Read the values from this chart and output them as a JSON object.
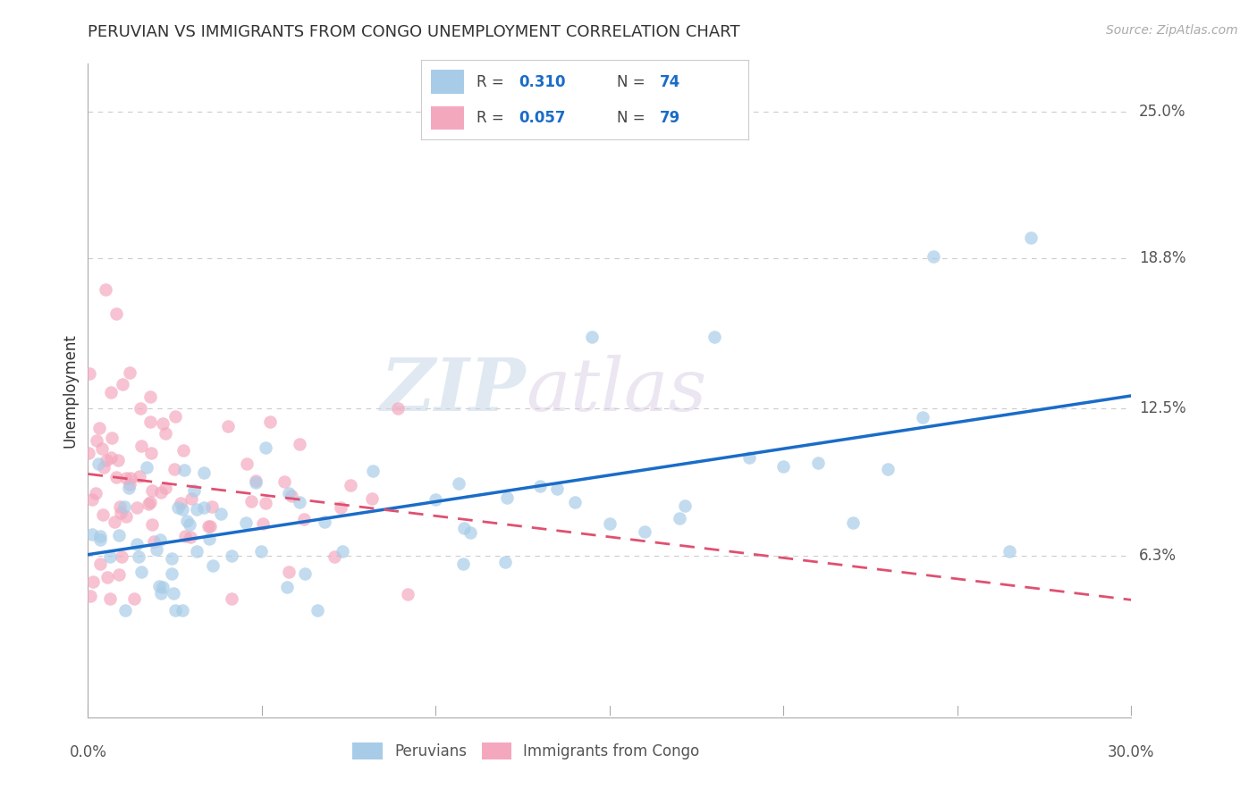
{
  "title": "PERUVIAN VS IMMIGRANTS FROM CONGO UNEMPLOYMENT CORRELATION CHART",
  "source": "Source: ZipAtlas.com",
  "ylabel": "Unemployment",
  "ytick_vals": [
    0.063,
    0.125,
    0.188,
    0.25
  ],
  "ytick_labels": [
    "6.3%",
    "12.5%",
    "18.8%",
    "25.0%"
  ],
  "xmin": 0.0,
  "xmax": 0.3,
  "ymin": -0.005,
  "ymax": 0.27,
  "blue_color": "#a8cce8",
  "pink_color": "#f4a8be",
  "blue_line_color": "#1a6cc8",
  "pink_line_color": "#e05070",
  "watermark_zip": "ZIP",
  "watermark_atlas": "atlas",
  "legend_label_blue": "Peruvians",
  "legend_label_pink": "Immigrants from Congo",
  "blue_x": [
    0.0,
    0.0,
    0.0,
    0.005,
    0.005,
    0.01,
    0.01,
    0.01,
    0.015,
    0.015,
    0.02,
    0.02,
    0.02,
    0.025,
    0.025,
    0.03,
    0.03,
    0.03,
    0.035,
    0.035,
    0.04,
    0.04,
    0.045,
    0.045,
    0.05,
    0.05,
    0.055,
    0.055,
    0.06,
    0.06,
    0.065,
    0.065,
    0.07,
    0.07,
    0.075,
    0.075,
    0.08,
    0.08,
    0.085,
    0.09,
    0.095,
    0.1,
    0.1,
    0.105,
    0.11,
    0.115,
    0.12,
    0.125,
    0.13,
    0.135,
    0.14,
    0.145,
    0.15,
    0.155,
    0.16,
    0.165,
    0.17,
    0.175,
    0.18,
    0.185,
    0.19,
    0.2,
    0.21,
    0.22,
    0.23,
    0.24,
    0.25,
    0.26,
    0.27,
    0.28,
    0.1,
    0.12,
    0.14,
    0.16
  ],
  "blue_y": [
    0.07,
    0.065,
    0.075,
    0.065,
    0.075,
    0.065,
    0.075,
    0.085,
    0.065,
    0.075,
    0.065,
    0.075,
    0.085,
    0.07,
    0.08,
    0.065,
    0.075,
    0.085,
    0.07,
    0.08,
    0.065,
    0.08,
    0.07,
    0.08,
    0.065,
    0.08,
    0.07,
    0.08,
    0.065,
    0.08,
    0.07,
    0.08,
    0.065,
    0.08,
    0.07,
    0.08,
    0.07,
    0.085,
    0.075,
    0.08,
    0.085,
    0.075,
    0.09,
    0.08,
    0.09,
    0.08,
    0.085,
    0.09,
    0.085,
    0.095,
    0.09,
    0.095,
    0.09,
    0.1,
    0.09,
    0.1,
    0.095,
    0.1,
    0.095,
    0.1,
    0.1,
    0.1,
    0.1,
    0.105,
    0.105,
    0.19,
    0.075,
    0.1,
    0.2,
    0.065,
    0.155,
    0.11,
    0.11,
    0.11
  ],
  "pink_x": [
    0.0,
    0.0,
    0.0,
    0.0,
    0.0,
    0.0,
    0.0,
    0.0,
    0.0,
    0.0,
    0.0,
    0.0,
    0.0,
    0.0,
    0.0,
    0.005,
    0.005,
    0.005,
    0.005,
    0.005,
    0.005,
    0.01,
    0.01,
    0.01,
    0.01,
    0.01,
    0.015,
    0.015,
    0.015,
    0.02,
    0.02,
    0.02,
    0.025,
    0.025,
    0.025,
    0.03,
    0.03,
    0.03,
    0.035,
    0.035,
    0.04,
    0.04,
    0.045,
    0.045,
    0.05,
    0.05,
    0.055,
    0.06,
    0.065,
    0.07,
    0.075,
    0.08,
    0.085,
    0.09,
    0.02,
    0.025,
    0.03,
    0.035,
    0.04,
    0.01,
    0.015,
    0.005,
    0.0,
    0.0,
    0.0,
    0.005,
    0.01,
    0.015,
    0.02,
    0.025,
    0.03,
    0.035,
    0.04,
    0.045,
    0.05,
    0.055,
    0.06,
    0.065,
    0.07
  ],
  "pink_y": [
    0.08,
    0.085,
    0.09,
    0.095,
    0.075,
    0.07,
    0.065,
    0.1,
    0.105,
    0.085,
    0.075,
    0.09,
    0.095,
    0.08,
    0.07,
    0.085,
    0.09,
    0.095,
    0.075,
    0.08,
    0.1,
    0.085,
    0.09,
    0.075,
    0.1,
    0.08,
    0.09,
    0.08,
    0.095,
    0.085,
    0.08,
    0.095,
    0.085,
    0.09,
    0.08,
    0.085,
    0.09,
    0.08,
    0.085,
    0.09,
    0.085,
    0.09,
    0.085,
    0.09,
    0.085,
    0.09,
    0.085,
    0.085,
    0.085,
    0.085,
    0.085,
    0.085,
    0.085,
    0.085,
    0.155,
    0.14,
    0.145,
    0.135,
    0.13,
    0.125,
    0.13,
    0.135,
    0.16,
    0.17,
    0.14,
    0.145,
    0.15,
    0.145,
    0.14,
    0.13,
    0.125,
    0.13,
    0.125,
    0.12,
    0.12,
    0.115,
    0.11,
    0.105,
    0.1
  ]
}
